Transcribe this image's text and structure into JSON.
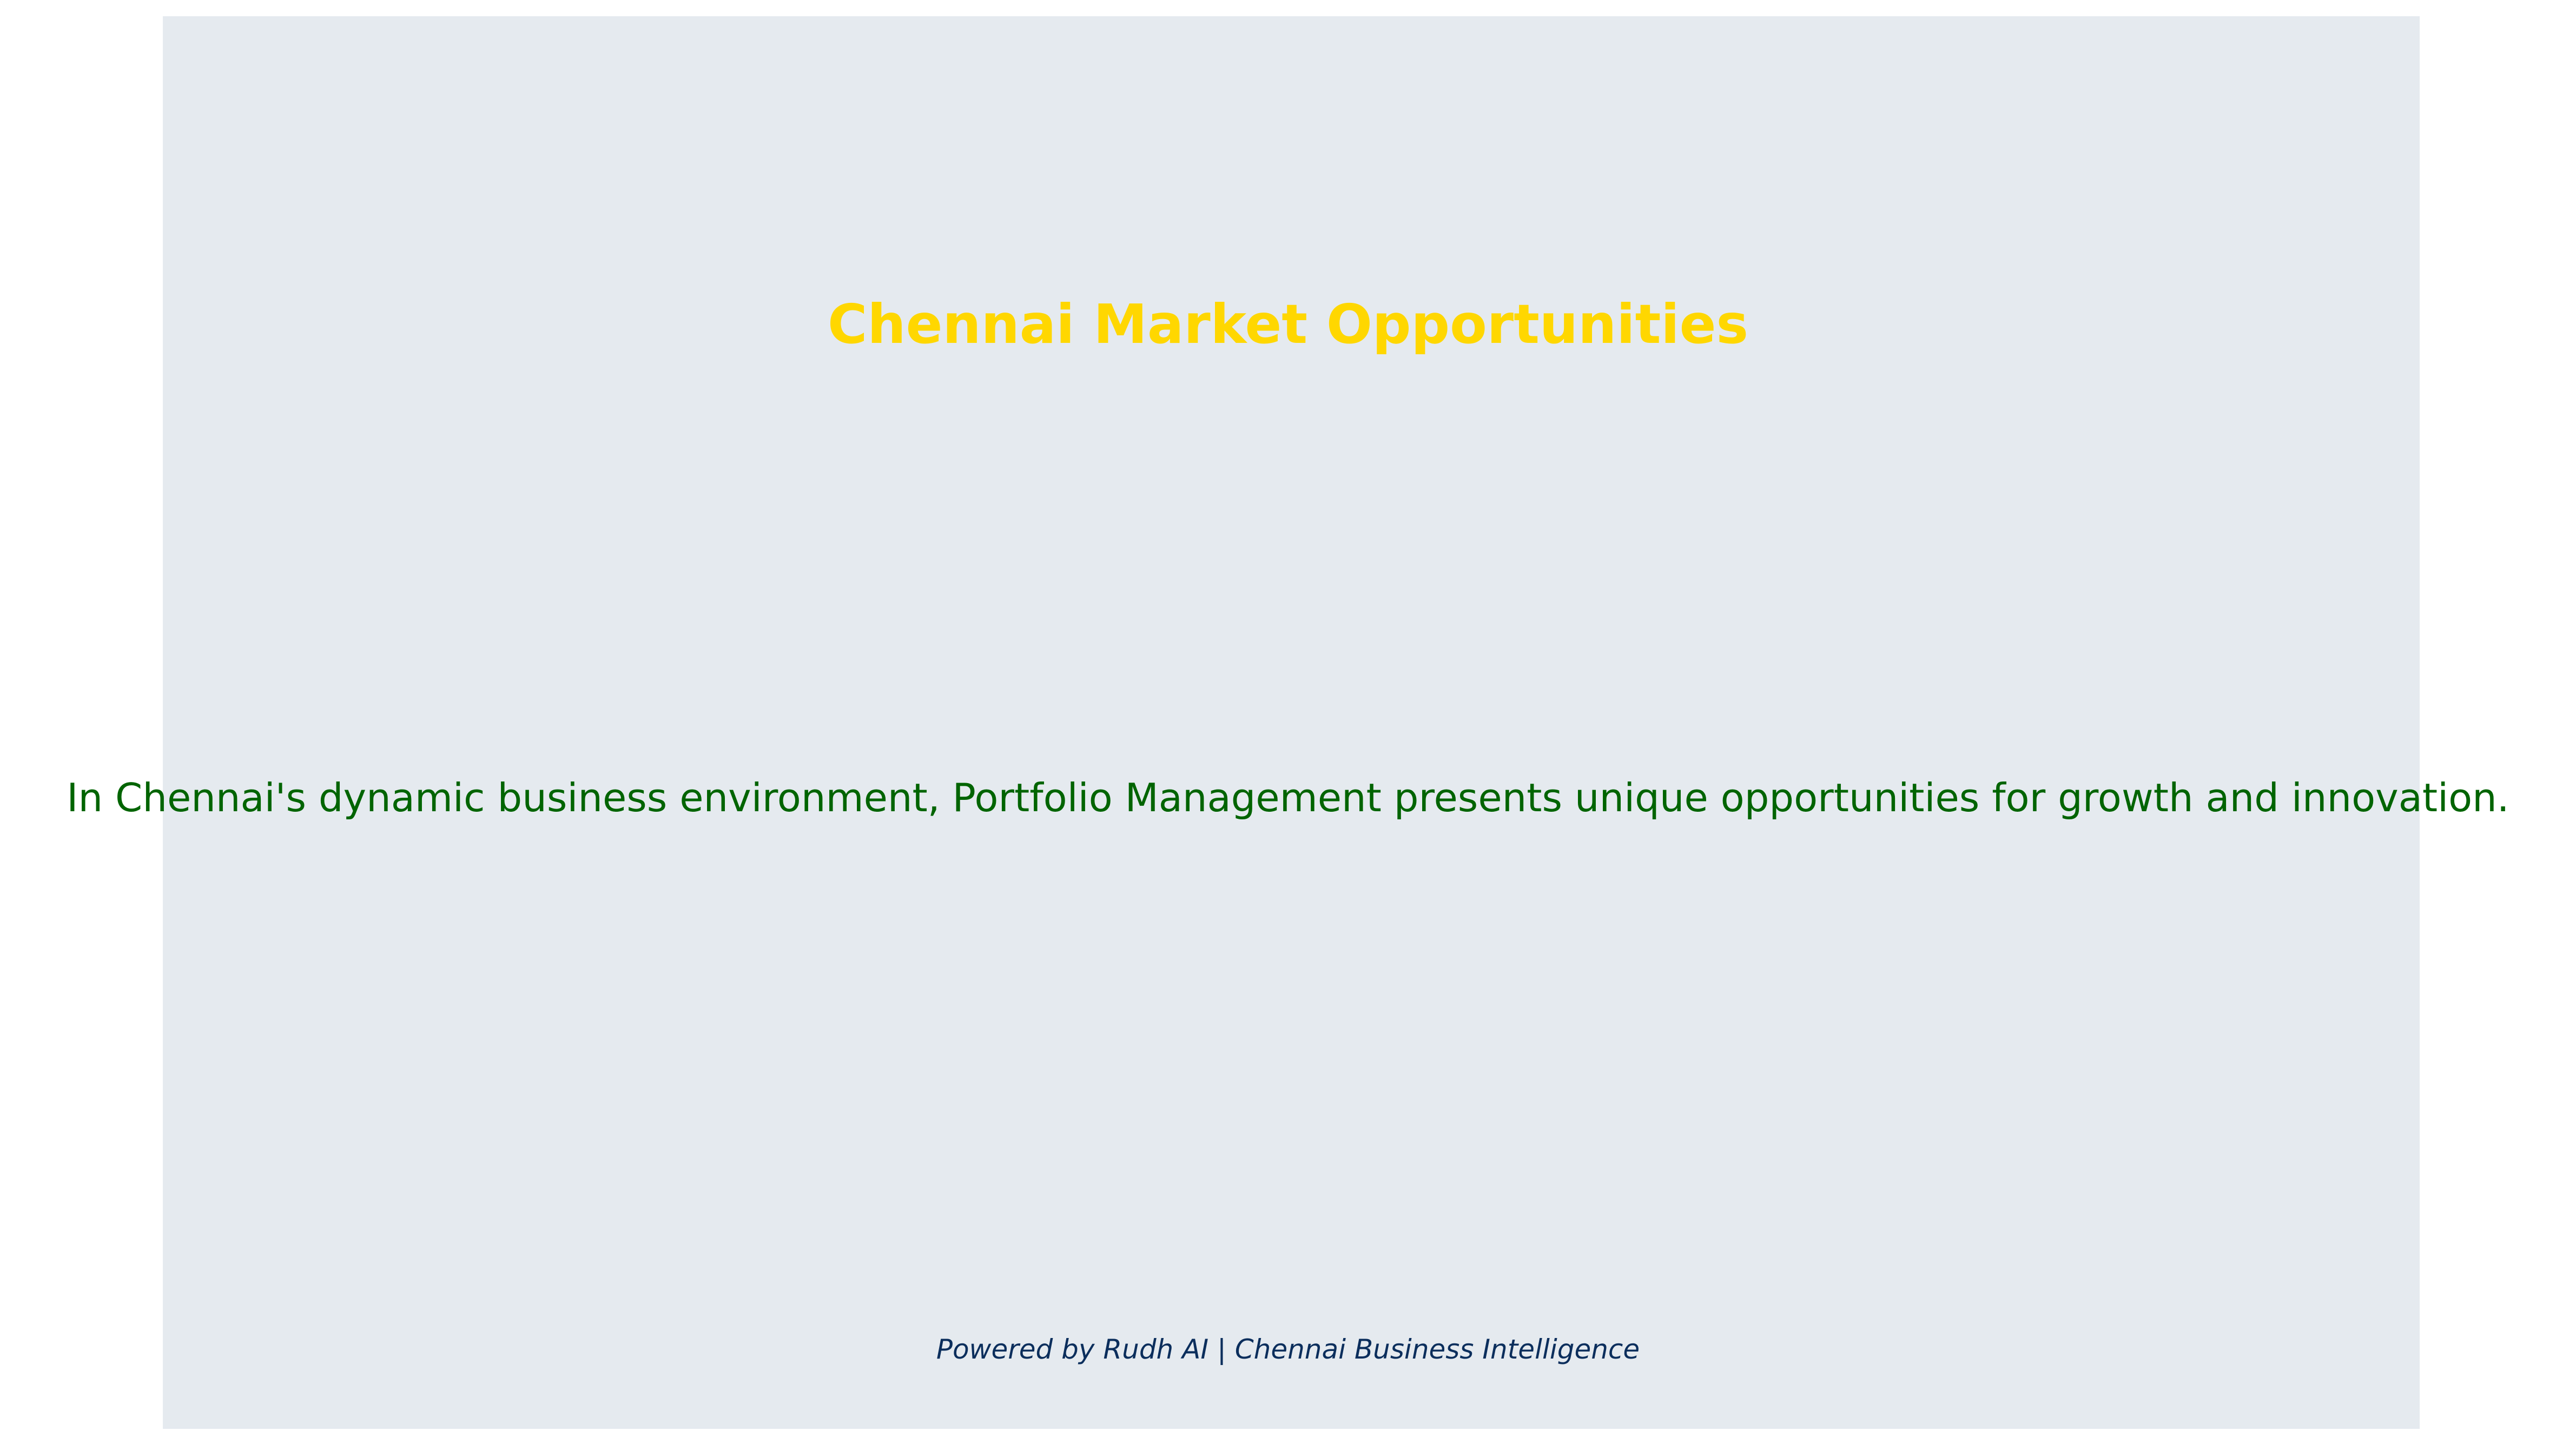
{
  "slide": {
    "title": "Chennai Market Opportunities",
    "body": "In Chennai's dynamic business environment, Portfolio Management presents unique opportunities for growth and innovation.",
    "footer": "Powered by Rudh AI | Chennai Business Intelligence"
  },
  "colors": {
    "panel_background": "#e5eaef",
    "title": "#ffd700",
    "body": "#006400",
    "footer": "#0b2e5c"
  }
}
